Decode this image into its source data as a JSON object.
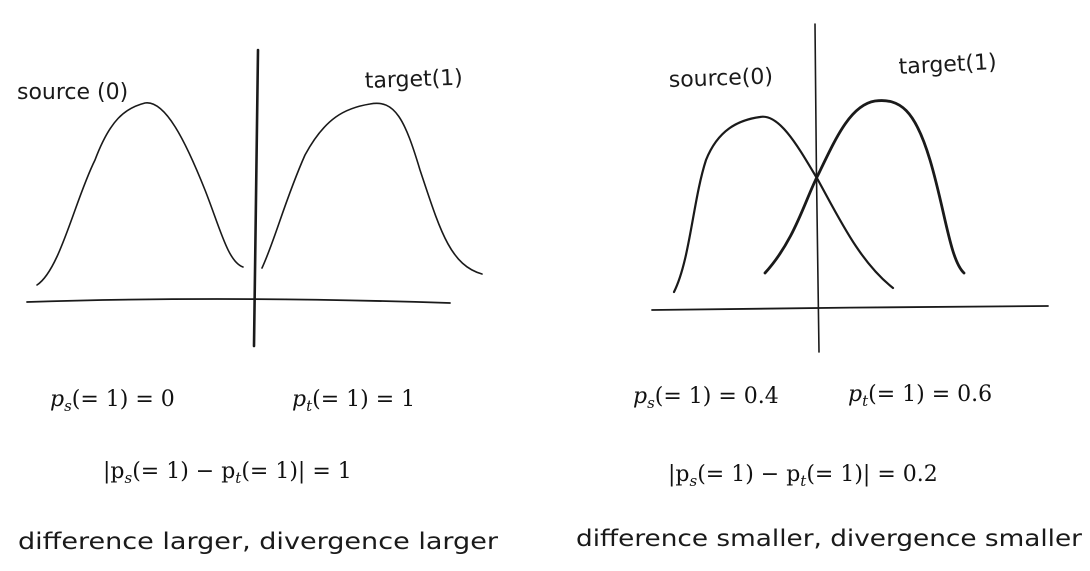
{
  "colors": {
    "ink": "#1a1a1a",
    "background": "#ffffff"
  },
  "left_panel": {
    "source_label": "source (0)",
    "target_label": "target(1)",
    "ps_lhs": "p",
    "ps_sub": "s",
    "ps_rhs": "(= 1) = 0",
    "pt_lhs": "p",
    "pt_sub": "t",
    "pt_rhs": "(= 1) = 1",
    "diff_open": "|p",
    "diff_sub1": "s",
    "diff_mid": "(= 1) − p",
    "diff_sub2": "t",
    "diff_close": "(= 1)| = 1",
    "caption": "difference larger, divergence larger"
  },
  "right_panel": {
    "source_label": "source(0)",
    "target_label": "target(1)",
    "ps_lhs": "p",
    "ps_sub": "s",
    "ps_rhs": "(= 1) = 0.4",
    "pt_lhs": "p",
    "pt_sub": "t",
    "pt_rhs": "(= 1) = 0.6",
    "diff_open": "|p",
    "diff_sub1": "s",
    "diff_mid": "(= 1) − p",
    "diff_sub2": "t",
    "diff_close": "(= 1)| = 0.2",
    "caption": "difference smaller, divergence smaller"
  }
}
